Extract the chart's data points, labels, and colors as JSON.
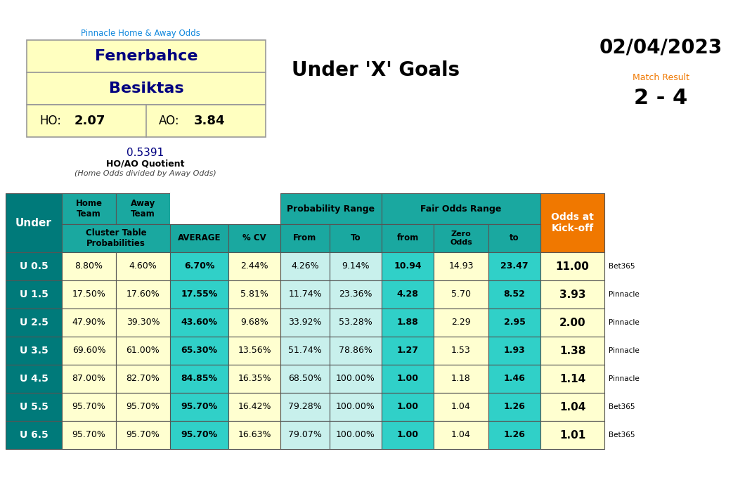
{
  "title_pinnacle": "Pinnacle Home & Away Odds",
  "home_team": "Fenerbahce",
  "away_team": "Besiktas",
  "ho": "2.07",
  "ao": "3.84",
  "quotient": "0.5391",
  "quotient_label": "HO/AO Quotient",
  "quotient_sublabel": "(Home Odds divided by Away Odds)",
  "main_title": "Under 'X' Goals",
  "date": "02/04/2023",
  "match_result_label": "Match Result",
  "match_result": "2 - 4",
  "under_labels": [
    "U 0.5",
    "U 1.5",
    "U 2.5",
    "U 3.5",
    "U 4.5",
    "U 5.5",
    "U 6.5"
  ],
  "home_prob": [
    "8.80%",
    "17.50%",
    "47.90%",
    "69.60%",
    "87.00%",
    "95.70%",
    "95.70%"
  ],
  "away_prob": [
    "4.60%",
    "17.60%",
    "39.30%",
    "61.00%",
    "82.70%",
    "95.70%",
    "95.70%"
  ],
  "average": [
    "6.70%",
    "17.55%",
    "43.60%",
    "65.30%",
    "84.85%",
    "95.70%",
    "95.70%"
  ],
  "cv": [
    "2.44%",
    "5.81%",
    "9.68%",
    "13.56%",
    "16.35%",
    "16.42%",
    "16.63%"
  ],
  "prob_from": [
    "4.26%",
    "11.74%",
    "33.92%",
    "51.74%",
    "68.50%",
    "79.28%",
    "79.07%"
  ],
  "prob_to": [
    "9.14%",
    "23.36%",
    "53.28%",
    "78.86%",
    "100.00%",
    "100.00%",
    "100.00%"
  ],
  "fair_from": [
    "10.94",
    "4.28",
    "1.88",
    "1.27",
    "1.00",
    "1.00",
    "1.00"
  ],
  "fair_zero": [
    "14.93",
    "5.70",
    "2.29",
    "1.53",
    "1.18",
    "1.04",
    "1.04"
  ],
  "fair_to": [
    "23.47",
    "8.52",
    "2.95",
    "1.93",
    "1.46",
    "1.26",
    "1.26"
  ],
  "kickoff_odds": [
    "11.00",
    "3.93",
    "2.00",
    "1.38",
    "1.14",
    "1.04",
    "1.01"
  ],
  "bookmakers": [
    "Bet365",
    "Pinnacle",
    "Pinnacle",
    "Pinnacle",
    "Pinnacle",
    "Bet365",
    "Bet365"
  ],
  "teal_dark": "#007A7A",
  "teal_med": "#1AA8A0",
  "teal_bright": "#30D0C8",
  "teal_lt": "#A0E8E0",
  "orange": "#F07800",
  "yellow": "#FFFFC8",
  "blue_dark": "#000080",
  "white": "#FFFFFF",
  "light_cyan": "#C8F0EC"
}
